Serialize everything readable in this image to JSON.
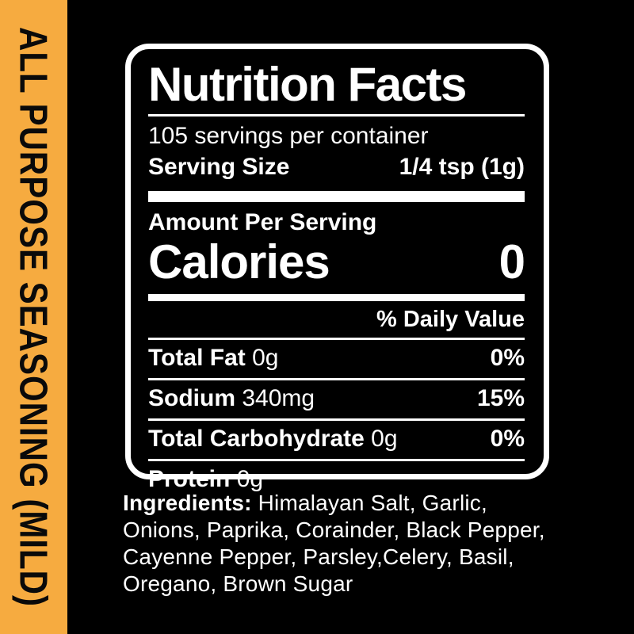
{
  "side_banner": {
    "text": "ALL PURPOSE SEASONING (MILD)",
    "bg_color": "#F6AB40",
    "text_color": "#0A0A0A"
  },
  "nutrition_label": {
    "title": "Nutrition Facts",
    "servings_per_container": "105 servings per container",
    "serving_size_label": "Serving Size",
    "serving_size_value": "1/4 tsp (1g)",
    "amount_per_serving_label": "Amount Per Serving",
    "calories_label": "Calories",
    "calories_value": "0",
    "daily_value_header": "% Daily Value",
    "rows": [
      {
        "name": "Total Fat",
        "amount": "0g",
        "dv": "0%"
      },
      {
        "name": "Sodium",
        "amount": "340mg",
        "dv": "15%"
      },
      {
        "name": "Total Carbohydrate",
        "amount": "0g",
        "dv": "0%"
      },
      {
        "name": "Protein",
        "amount": "0g",
        "dv": ""
      }
    ]
  },
  "ingredients": {
    "label": "Ingredients:",
    "text": " Himalayan Salt, Garlic, Onions, Paprika, Corainder, Black Pepper, Cayenne Pepper, Parsley,Celery, Basil, Oregano, Brown Sugar"
  }
}
